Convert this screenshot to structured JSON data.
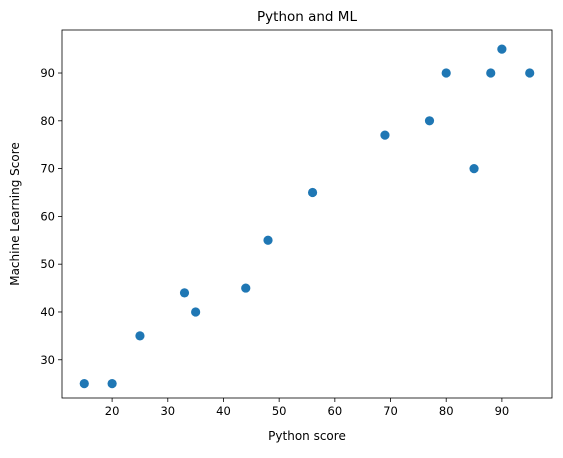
{
  "chart_data": {
    "type": "scatter",
    "title": "Python and ML",
    "xlabel": "Python score",
    "ylabel": "Machine Learning Score",
    "xlim": [
      11,
      99
    ],
    "ylim": [
      22,
      99
    ],
    "xticks": [
      20,
      30,
      40,
      50,
      60,
      70,
      80,
      90
    ],
    "yticks": [
      30,
      40,
      50,
      60,
      70,
      80,
      90
    ],
    "grid": false,
    "marker_color": "#1f77b4",
    "points": [
      {
        "x": 15,
        "y": 25
      },
      {
        "x": 20,
        "y": 25
      },
      {
        "x": 25,
        "y": 35
      },
      {
        "x": 33,
        "y": 44
      },
      {
        "x": 35,
        "y": 40
      },
      {
        "x": 44,
        "y": 45
      },
      {
        "x": 48,
        "y": 55
      },
      {
        "x": 56,
        "y": 65
      },
      {
        "x": 69,
        "y": 77
      },
      {
        "x": 77,
        "y": 80
      },
      {
        "x": 80,
        "y": 90
      },
      {
        "x": 85,
        "y": 70
      },
      {
        "x": 88,
        "y": 90
      },
      {
        "x": 90,
        "y": 95
      },
      {
        "x": 95,
        "y": 90
      }
    ]
  }
}
